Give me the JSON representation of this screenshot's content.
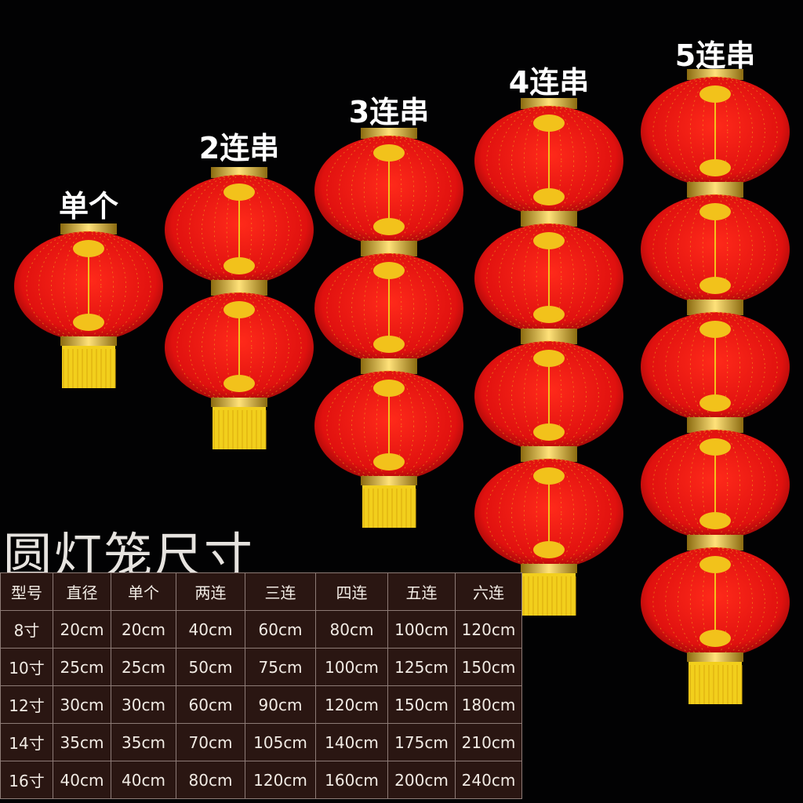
{
  "colors": {
    "background": "#020203",
    "lantern_red": "#e0110f",
    "gold": "#f2c21b",
    "table_bg": "#2a1612"
  },
  "lantern_groups": [
    {
      "label": "单个",
      "count": 1
    },
    {
      "label": "2连串",
      "count": 2
    },
    {
      "label": "3连串",
      "count": 3
    },
    {
      "label": "4连串",
      "count": 4
    },
    {
      "label": "5连串",
      "count": 5
    }
  ],
  "title": "圆灯笼尺寸",
  "table": {
    "headers": [
      "型号",
      "直径",
      "单个",
      "两连",
      "三连",
      "四连",
      "五连",
      "六连"
    ],
    "rows": [
      [
        "8寸",
        "20cm",
        "20cm",
        "40cm",
        "60cm",
        "80cm",
        "100cm",
        "120cm"
      ],
      [
        "10寸",
        "25cm",
        "25cm",
        "50cm",
        "75cm",
        "100cm",
        "125cm",
        "150cm"
      ],
      [
        "12寸",
        "30cm",
        "30cm",
        "60cm",
        "90cm",
        "120cm",
        "150cm",
        "180cm"
      ],
      [
        "14寸",
        "35cm",
        "35cm",
        "70cm",
        "105cm",
        "140cm",
        "175cm",
        "210cm"
      ],
      [
        "16寸",
        "40cm",
        "40cm",
        "80cm",
        "120cm",
        "160cm",
        "200cm",
        "240cm"
      ]
    ]
  }
}
